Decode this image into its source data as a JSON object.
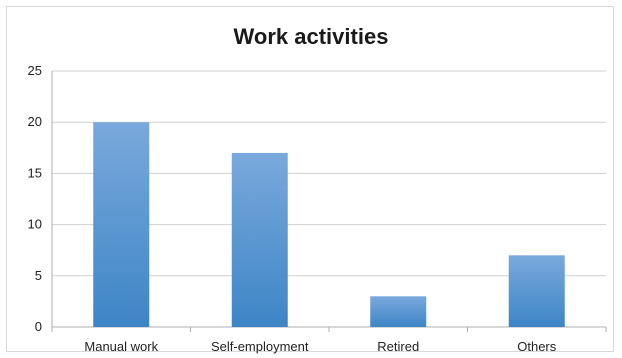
{
  "chart_data": {
    "type": "bar",
    "title": "Work activities",
    "categories": [
      "Manual work",
      "Self-employment",
      "Retired",
      "Others"
    ],
    "values": [
      20,
      17,
      3,
      7
    ],
    "xlabel": "",
    "ylabel": "",
    "ylim": [
      0,
      25
    ],
    "yticks": [
      0,
      5,
      10,
      15,
      20,
      25
    ],
    "grid": true,
    "legend": "none",
    "colors": {
      "bar_top": "#7aa9dc",
      "bar_bottom": "#3d85c6",
      "grid": "#d0d0d0",
      "axis": "#b0b0b0"
    }
  }
}
